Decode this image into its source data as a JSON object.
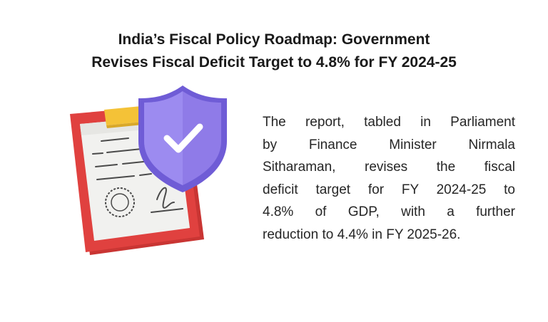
{
  "headline": {
    "line1": "India’s Fiscal Policy Roadmap: Government",
    "line2": "Revises Fiscal Deficit Target to 4.8% for FY 2024-25"
  },
  "description": {
    "lines": [
      "The report, tabled in Parliament",
      "by Finance Minister Nirmala",
      "Sitharaman, revises the fiscal",
      "deficit target for FY 2024-25 to",
      "4.8% of GDP, with a further",
      "reduction to 4.4% in FY 2025-26."
    ]
  },
  "illustration": {
    "icons": [
      "clipboard-icon",
      "shield-check-icon",
      "seal-icon",
      "signature-icon"
    ],
    "colors": {
      "clipboard_board": "#e0413f",
      "clipboard_clip": "#f4c237",
      "paper": "#f1f1ef",
      "paper_lines": "#4a4a4a",
      "shield": "#8f7be8",
      "shield_dark": "#6f5cd6",
      "checkmark": "#ffffff"
    }
  }
}
